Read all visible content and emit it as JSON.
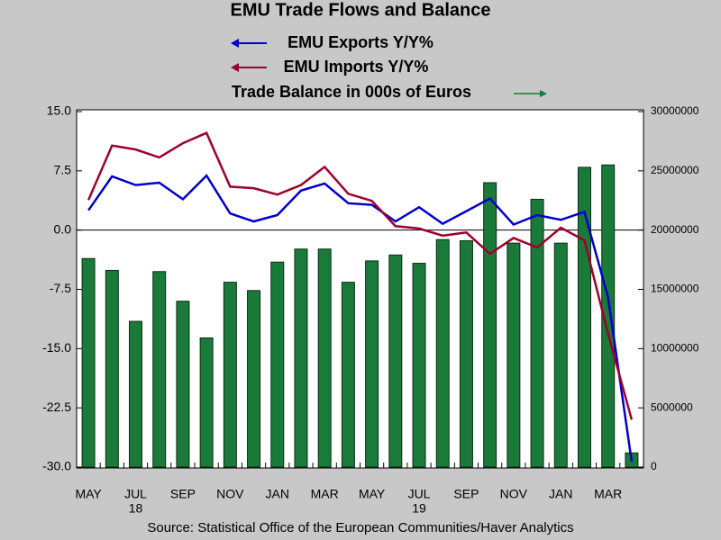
{
  "chart_data": {
    "type": "combo",
    "title": "EMU Trade Flows and Balance",
    "source": "Source:  Statistical Office of the European Communities/Haver Analytics",
    "categories": [
      "MAY",
      null,
      "JUL",
      null,
      "SEP",
      null,
      "NOV",
      null,
      "JAN",
      null,
      "MAR",
      null,
      "MAY",
      null,
      "JUL",
      null,
      "SEP",
      null,
      "NOV",
      null,
      "JAN",
      null,
      "MAR",
      null
    ],
    "category_years": [
      null,
      null,
      "18",
      null,
      null,
      null,
      null,
      null,
      null,
      null,
      null,
      null,
      null,
      null,
      "19",
      null,
      null,
      null,
      null,
      null,
      null,
      null,
      null,
      null
    ],
    "series": [
      {
        "name": "Trade Balance in 000s of Euros",
        "type": "bar",
        "axis": "y2",
        "color": "#1a7a3a",
        "values": [
          17600000,
          16600000,
          12300000,
          16500000,
          14000000,
          10900000,
          15600000,
          14900000,
          17300000,
          18400000,
          18400000,
          15600000,
          17400000,
          17900000,
          17200000,
          19200000,
          19100000,
          24000000,
          18900000,
          22600000,
          18900000,
          25300000,
          25500000,
          1200000
        ]
      },
      {
        "name": "EMU Exports Y/Y%",
        "type": "line",
        "color": "#0000cc",
        "values": [
          2.5,
          6.8,
          5.7,
          6.0,
          3.9,
          6.9,
          2.1,
          1.1,
          1.9,
          5.0,
          5.9,
          3.4,
          3.2,
          1.1,
          2.9,
          0.8,
          2.4,
          4.0,
          0.7,
          1.9,
          1.3,
          2.3,
          -8.5,
          -29.3
        ]
      },
      {
        "name": "EMU Imports Y/Y%",
        "type": "line",
        "color": "#a0002a",
        "values": [
          3.8,
          10.7,
          10.2,
          9.2,
          11.0,
          12.3,
          5.5,
          5.3,
          4.5,
          5.7,
          8.0,
          4.6,
          3.7,
          0.5,
          0.2,
          -0.7,
          -0.3,
          -3.0,
          -1.0,
          -2.2,
          0.3,
          -1.3,
          -13.1,
          -24.0
        ]
      }
    ],
    "ylim": [
      -30,
      15
    ],
    "yticks": [
      {
        "value": -30,
        "label": "-30.0"
      },
      -22.5,
      {
        "value": -15,
        "label": "-15.0"
      },
      -7.5,
      {
        "value": 0,
        "label": "0.0"
      },
      7.5,
      {
        "value": 15,
        "label": "15.0"
      }
    ],
    "y2lim": [
      0,
      30000000
    ],
    "y2ticks": [
      0,
      5000000,
      10000000,
      15000000,
      20000000,
      25000000,
      30000000
    ]
  }
}
